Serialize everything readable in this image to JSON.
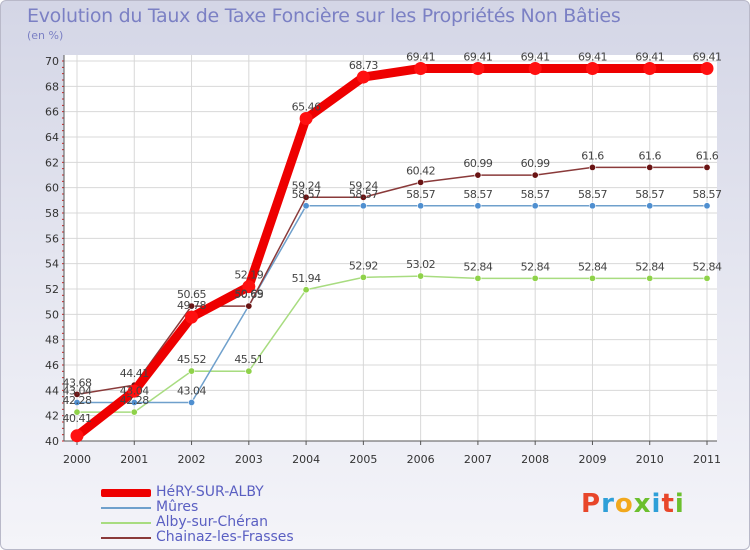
{
  "title": "Evolution du Taux de Taxe Foncière sur les Propriétés Non Bâties",
  "unit_label": "(en %)",
  "logo_text": "Proxiti",
  "logo_letters": [
    "P",
    "r",
    "o",
    "x",
    "i",
    "t",
    "i"
  ],
  "logo_colors": [
    "#e8462a",
    "#2e9fd8",
    "#f2a81d",
    "#6cbf2e",
    "#2e9fd8",
    "#e8462a",
    "#6cbf2e"
  ],
  "legend": [
    {
      "label": "HéRY-SUR-ALBY",
      "color": "#ee0000"
    },
    {
      "label": "Mûres",
      "color": "#6fa0cc"
    },
    {
      "label": "Alby-sur-Chéran",
      "color": "#a8dc80"
    },
    {
      "label": "Chainaz-les-Frasses",
      "color": "#8a3a3a"
    }
  ],
  "chart_data": {
    "type": "line",
    "title": "Evolution du Taux de Taxe Foncière sur les Propriétés Non Bâties",
    "ylabel": "(en %)",
    "xlabel": "",
    "x": [
      "2000",
      "2001",
      "2002",
      "2003",
      "2004",
      "2005",
      "2006",
      "2007",
      "2008",
      "2009",
      "2010",
      "2011"
    ],
    "ylim": [
      40,
      70
    ],
    "yticks": [
      40,
      42,
      44,
      46,
      48,
      50,
      52,
      54,
      56,
      58,
      60,
      62,
      64,
      66,
      68,
      70
    ],
    "series": [
      {
        "name": "HéRY-SUR-ALBY",
        "color": "#ee0000",
        "marker": "#ff1010",
        "values": [
          40.41,
          43.94,
          49.78,
          52.19,
          65.46,
          68.73,
          69.41,
          69.41,
          69.41,
          69.41,
          69.41,
          69.41
        ],
        "labels": [
          "40.41",
          "",
          "49.78",
          "52.19",
          "65.46",
          "68.73",
          "69.41",
          "69.41",
          "69.41",
          "69.41",
          "69.41",
          "69.41"
        ]
      },
      {
        "name": "Mûres",
        "color": "#6fa0cc",
        "marker": "#4f8fd0",
        "values": [
          43.04,
          43.04,
          43.04,
          50.69,
          58.57,
          58.57,
          58.57,
          58.57,
          58.57,
          58.57,
          58.57,
          58.57
        ],
        "labels": [
          "43.04",
          "43.04",
          "43.04",
          "50.69",
          "58.57",
          "58.57",
          "58.57",
          "58.57",
          "58.57",
          "58.57",
          "58.57",
          "58.57"
        ]
      },
      {
        "name": "Alby-sur-Chéran",
        "color": "#a8dc80",
        "marker": "#8fd24a",
        "values": [
          42.28,
          42.28,
          45.52,
          45.51,
          51.94,
          52.92,
          53.02,
          52.84,
          52.84,
          52.84,
          52.84,
          52.84
        ],
        "labels": [
          "42.28",
          "42.28",
          "45.52",
          "45.51",
          "51.94",
          "52.92",
          "53.02",
          "52.84",
          "52.84",
          "52.84",
          "52.84",
          "52.84"
        ]
      },
      {
        "name": "Chainaz-les-Frasses",
        "color": "#8a3a3a",
        "marker": "#6a1414",
        "values": [
          43.68,
          44.41,
          50.65,
          50.65,
          59.24,
          59.24,
          60.42,
          60.99,
          60.99,
          61.6,
          61.6,
          61.6
        ],
        "labels": [
          "43.68",
          "44.41",
          "50.65",
          "50.65",
          "59.24",
          "59.24",
          "60.42",
          "60.99",
          "60.99",
          "61.6",
          "61.6",
          "61.6"
        ]
      }
    ]
  }
}
